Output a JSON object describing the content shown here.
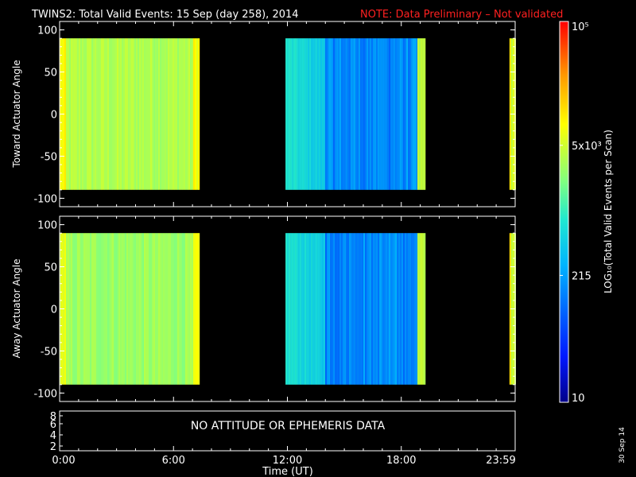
{
  "header": {
    "title": "TWINS2: Total Valid Events: 15 Sep (day 258), 2014",
    "note": "NOTE: Data Preliminary – Not validated",
    "note_color": "#ff2020"
  },
  "chart_data": [
    {
      "type": "heatmap",
      "ylabel": "Toward Actuator Angle",
      "xlim": [
        0,
        24
      ],
      "ylim": [
        -110,
        110
      ],
      "yticks": [
        100,
        50,
        0,
        -50,
        -100
      ],
      "data_extent_y": [
        -90,
        90
      ],
      "data_segments": [
        {
          "x_start": 0.0,
          "x_end": 7.3,
          "level": "high",
          "mean_log10": 3.55
        },
        {
          "x_start": 11.9,
          "x_end": 19.2,
          "level": "mixed",
          "mean_log10": 2.7
        },
        {
          "x_start": 23.7,
          "x_end": 24.0,
          "level": "high",
          "mean_log10": 3.7
        }
      ]
    },
    {
      "type": "heatmap",
      "ylabel": "Away Actuator Angle",
      "xlim": [
        0,
        24
      ],
      "ylim": [
        -110,
        110
      ],
      "yticks": [
        100,
        50,
        0,
        -50,
        -100
      ],
      "data_extent_y": [
        -90,
        90
      ],
      "data_segments": [
        {
          "x_start": 0.0,
          "x_end": 7.3,
          "level": "high",
          "mean_log10": 3.45
        },
        {
          "x_start": 11.9,
          "x_end": 19.2,
          "level": "mixed",
          "mean_log10": 2.6
        },
        {
          "x_start": 23.7,
          "x_end": 24.0,
          "level": "high",
          "mean_log10": 3.7
        }
      ]
    },
    {
      "type": "line",
      "yticks": [
        "8",
        "6",
        "4",
        "2"
      ],
      "annotation": "NO ATTITUDE OR EPHEMERIS DATA",
      "xticks": [
        "0:00",
        "6:00",
        "12:00",
        "18:00",
        "23:59"
      ],
      "xlabel": "Time (UT)"
    }
  ],
  "colorbar": {
    "label": "LOG₁₀(Total Valid Events per Scan)",
    "scale": "log",
    "range": [
      10,
      100000
    ],
    "ticks": [
      "10⁵",
      "5x10³",
      "215",
      "10"
    ],
    "tick_values": [
      100000,
      5000,
      215,
      10
    ]
  },
  "footer": {
    "date_stamp": "30 Sep 14"
  }
}
